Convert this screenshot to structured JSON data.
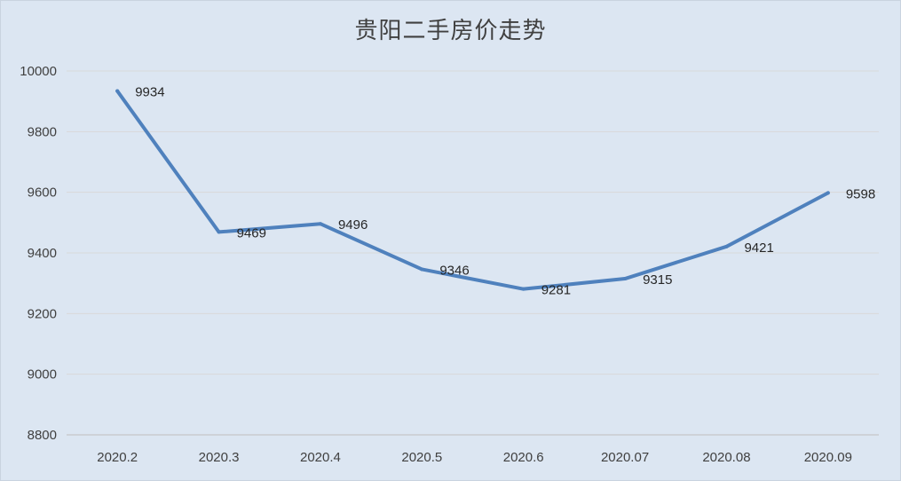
{
  "chart_data": {
    "type": "line",
    "title": "贵阳二手房价走势",
    "categories": [
      "2020.2",
      "2020.3",
      "2020.4",
      "2020.5",
      "2020.6",
      "2020.07",
      "2020.08",
      "2020.09"
    ],
    "series": [
      {
        "values": [
          9934,
          9469,
          9496,
          9346,
          9281,
          9315,
          9421,
          9598
        ],
        "data_labels": [
          "9934",
          "9469",
          "9496",
          "9346",
          "9281",
          "9315",
          "9421",
          "9598"
        ],
        "color": "#4f81bd"
      }
    ],
    "ylim": [
      8800,
      10000
    ],
    "yticks": [
      8800,
      9000,
      9200,
      9400,
      9600,
      9800,
      10000
    ],
    "ytick_labels": [
      "8800",
      "9000",
      "9200",
      "9400",
      "9600",
      "9800",
      "10000"
    ],
    "grid": true,
    "legend": "none",
    "colors": {
      "background": "#dce6f2",
      "gridline": "#d9d9d9",
      "axis": "#bfbfbf"
    }
  }
}
